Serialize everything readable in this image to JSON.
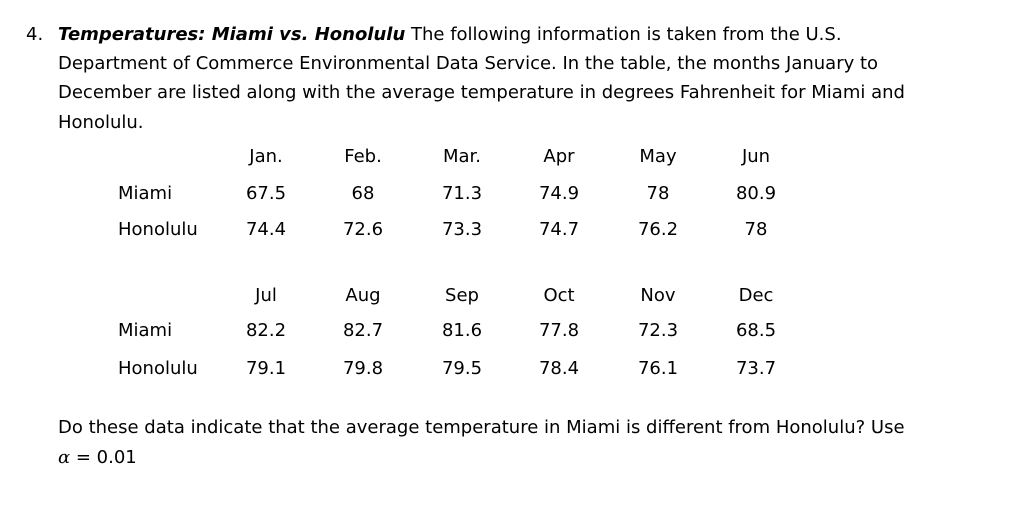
{
  "problem": {
    "number": "4.",
    "title": "Temperatures: Miami vs. Honolulu",
    "intro_lines": [
      " The following information is taken from the U.S.",
      "Department of Commerce Environmental Data Service.  In the table, the months January to",
      "December are listed along with the average temperature in degrees Fahrenheit for Miami and",
      "Honolulu."
    ],
    "question_line": "Do these data indicate that the average temperature in Miami is different from Honolulu? Use",
    "alpha_symbol": "α",
    "alpha_value": " = 0.01"
  },
  "table": {
    "blocks": [
      {
        "months": [
          "Jan.",
          "Feb.",
          "Mar.",
          "Apr",
          "May",
          "Jun"
        ],
        "rows": [
          {
            "label": "Miami",
            "values": [
              "67.5",
              "68",
              "71.3",
              "74.9",
              "78",
              "80.9"
            ]
          },
          {
            "label": "Honolulu",
            "values": [
              "74.4",
              "72.6",
              "73.3",
              "74.7",
              "76.2",
              "78"
            ]
          }
        ]
      },
      {
        "months": [
          "Jul",
          "Aug",
          "Sep",
          "Oct",
          "Nov",
          "Dec"
        ],
        "rows": [
          {
            "label": "Miami",
            "values": [
              "82.2",
              "82.7",
              "81.6",
              "77.8",
              "72.3",
              "68.5"
            ]
          },
          {
            "label": "Honolulu",
            "values": [
              "79.1",
              "79.8",
              "79.5",
              "78.4",
              "76.1",
              "73.7"
            ]
          }
        ]
      }
    ]
  }
}
